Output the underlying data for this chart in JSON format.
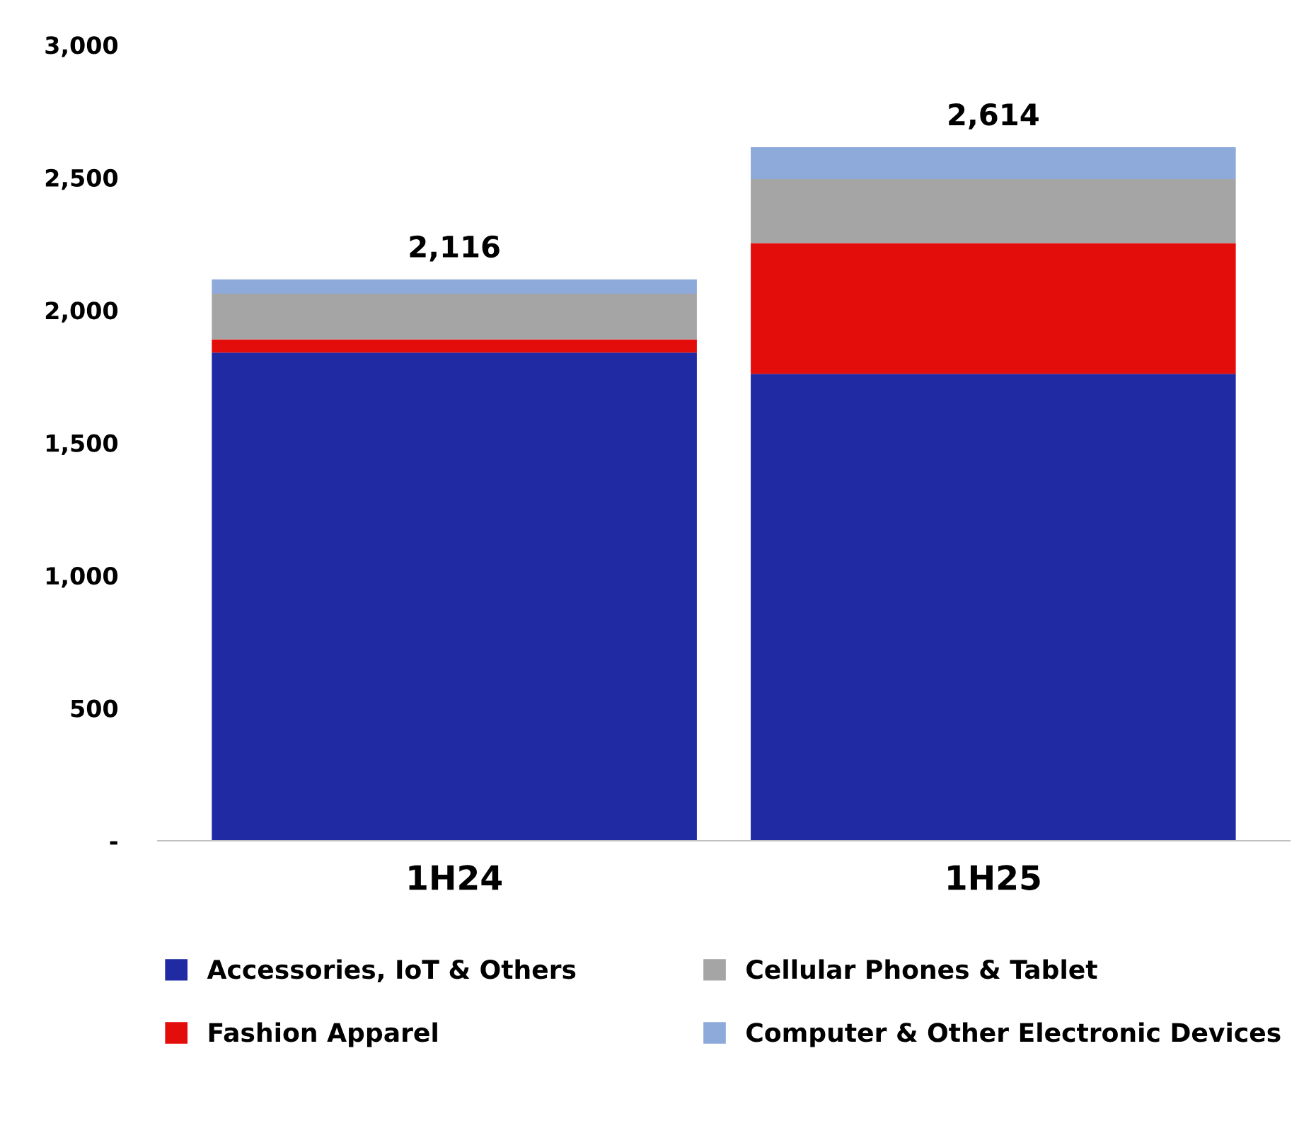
{
  "chart_data": {
    "type": "bar",
    "stacked": true,
    "categories": [
      "1H24",
      "1H25"
    ],
    "series": [
      {
        "name": "Accessories, IoT & Others",
        "color": "#1f2aa3",
        "values": [
          1840,
          1760
        ]
      },
      {
        "name": "Fashion Apparel",
        "color": "#e30d0b",
        "values": [
          50,
          493
        ]
      },
      {
        "name": "Cellular Phones & Tablet",
        "color": "#a5a5a5",
        "values": [
          172,
          241
        ]
      },
      {
        "name": "Computer & Other Electronic Devices",
        "color": "#8eaadb",
        "values": [
          54,
          120
        ]
      }
    ],
    "totals": [
      "2,116",
      "2,614"
    ],
    "ylim": [
      0,
      3000
    ],
    "yticks": [
      {
        "value": 0,
        "label": "-"
      },
      {
        "value": 500,
        "label": "500"
      },
      {
        "value": 1000,
        "label": "1,000"
      },
      {
        "value": 1500,
        "label": "1,500"
      },
      {
        "value": 2000,
        "label": "2,000"
      },
      {
        "value": 2500,
        "label": "2,500"
      },
      {
        "value": 3000,
        "label": "3,000"
      }
    ],
    "grid": false,
    "legend": "bottom"
  }
}
